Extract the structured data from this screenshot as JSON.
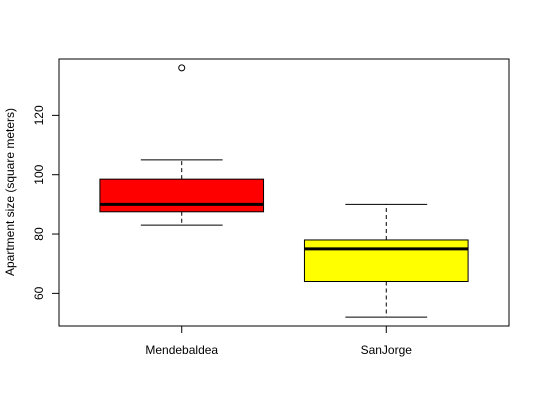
{
  "chart_data": {
    "type": "boxplot",
    "title": "",
    "xlabel": "",
    "ylabel": "Apartment size (square meters)",
    "ylim": [
      49,
      139
    ],
    "y_ticks": [
      60,
      80,
      100,
      120
    ],
    "categories": [
      "Mendebaldea",
      "SanJorge"
    ],
    "boxes": [
      {
        "name": "Mendebaldea",
        "whisker_low": 83,
        "q1": 87.5,
        "median": 90,
        "q3": 98.5,
        "whisker_high": 105,
        "outliers": [
          136
        ],
        "fill": "#ff0000"
      },
      {
        "name": "SanJorge",
        "whisker_low": 52,
        "q1": 64,
        "median": 75,
        "q3": 78,
        "whisker_high": 90,
        "outliers": [],
        "fill": "#ffff00"
      }
    ]
  }
}
